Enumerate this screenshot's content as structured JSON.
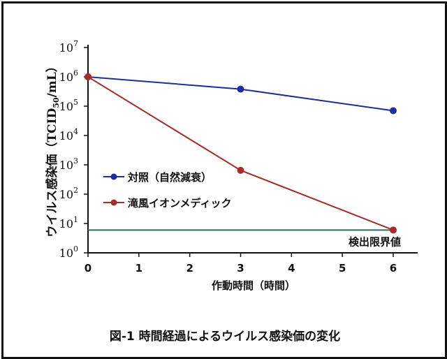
{
  "chart_data": {
    "type": "line",
    "y_scale": "log",
    "ylabel": "ウイルス感染価（TCID",
    "ylabel_sub": "50",
    "ylabel_end": "/mL）",
    "xlabel": "作動時間（時間）",
    "caption": "図-1 時間経過によるウイルス感染価の変化",
    "x_ticks": [
      0,
      1,
      2,
      3,
      4,
      5,
      6
    ],
    "y_tick_exponents": [
      0,
      1,
      2,
      3,
      4,
      5,
      6,
      7
    ],
    "y_tick_base": "10",
    "xlim": [
      0,
      6
    ],
    "ylim": [
      1,
      10000000
    ],
    "series": [
      {
        "name": "対照（自然減衰）",
        "color": "#1f2f9a",
        "x": [
          0,
          3,
          6
        ],
        "y": [
          1000000,
          380000,
          70000
        ]
      },
      {
        "name": "滝風イオンメディック",
        "color": "#a82a2a",
        "x": [
          0,
          3,
          6
        ],
        "y": [
          1000000,
          650,
          6
        ]
      }
    ],
    "detection_limit": {
      "label": "検出限界値",
      "y": 6,
      "color": "#2f6e5a"
    },
    "legend_position": "center-left",
    "grid": false
  }
}
